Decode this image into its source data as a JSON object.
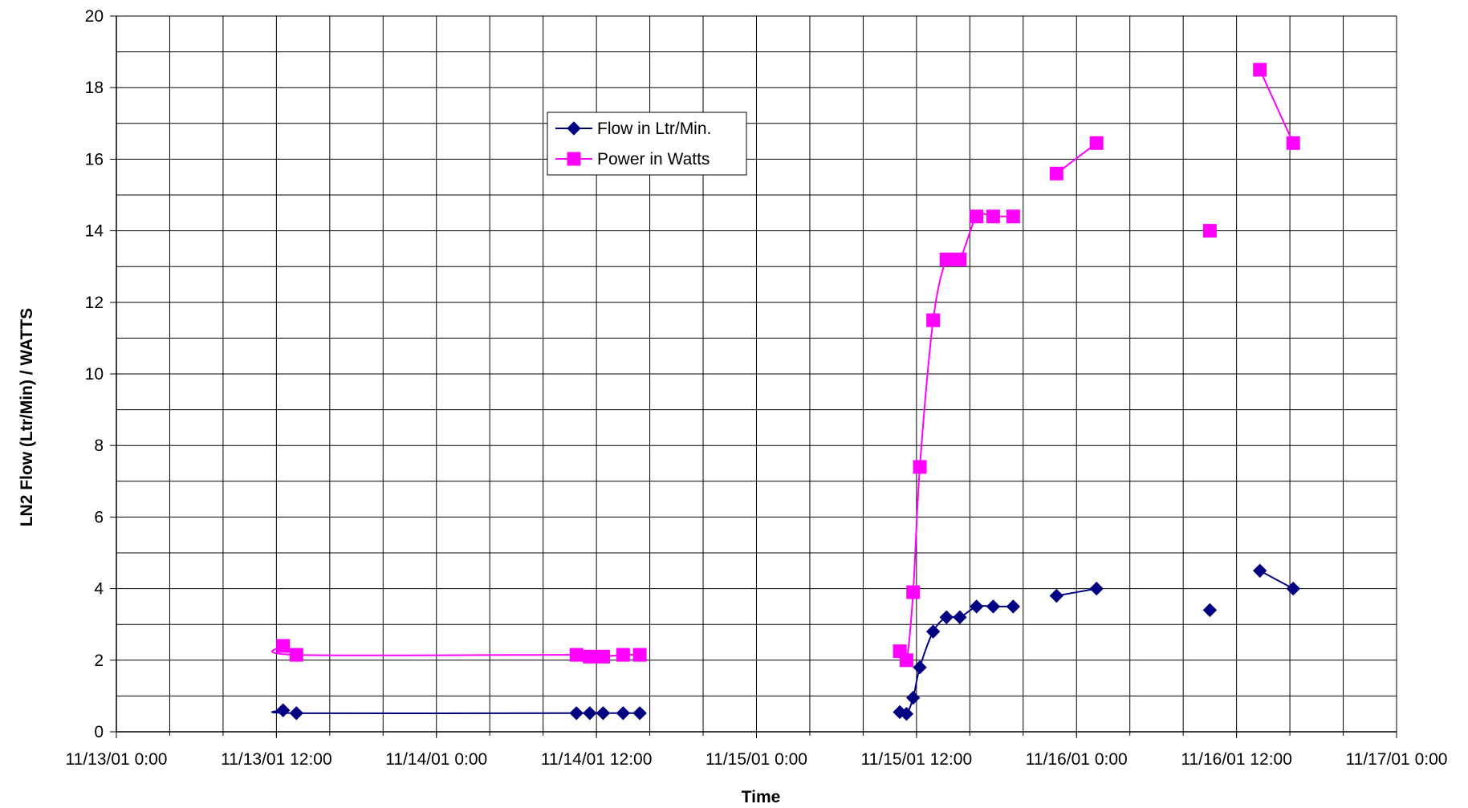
{
  "chart_data": {
    "type": "scatter",
    "title": "",
    "xlabel": "Time",
    "ylabel": "LN2 Flow (Ltr/Min) / WATTS",
    "x_axis_type": "time",
    "xlim": [
      "2001-11-13 00:00",
      "2001-11-17 00:00"
    ],
    "ylim": [
      0,
      20
    ],
    "y_major_step": 2,
    "grid": true,
    "legend_position": "inside-top-center",
    "x_tick_labels": [
      "11/13/01 0:00",
      "11/13/01 12:00",
      "11/14/01 0:00",
      "11/14/01 12:00",
      "11/15/01 0:00",
      "11/15/01 12:00",
      "11/16/01 0:00",
      "11/16/01 12:00",
      "11/17/01 0:00"
    ],
    "y_tick_labels": [
      "0",
      "2",
      "4",
      "6",
      "8",
      "10",
      "12",
      "14",
      "16",
      "18",
      "20"
    ],
    "series": [
      {
        "name": "Flow in Ltr/Min.",
        "color": "#000080",
        "marker": "diamond",
        "segments": [
          [
            [
              "2001-11-13 12:30",
              0.6
            ],
            [
              "2001-11-13 13:30",
              0.52
            ],
            [
              "2001-11-14 10:30",
              0.52
            ],
            [
              "2001-11-14 11:30",
              0.52
            ],
            [
              "2001-11-14 12:30",
              0.52
            ],
            [
              "2001-11-14 14:00",
              0.52
            ],
            [
              "2001-11-14 15:15",
              0.52
            ]
          ],
          [
            [
              "2001-11-15 10:45",
              0.55
            ],
            [
              "2001-11-15 11:15",
              0.5
            ],
            [
              "2001-11-15 11:45",
              0.95
            ],
            [
              "2001-11-15 12:15",
              1.8
            ],
            [
              "2001-11-15 13:15",
              2.8
            ],
            [
              "2001-11-15 14:15",
              3.2
            ],
            [
              "2001-11-15 15:15",
              3.2
            ],
            [
              "2001-11-15 16:30",
              3.5
            ],
            [
              "2001-11-15 17:45",
              3.5
            ],
            [
              "2001-11-15 19:15",
              3.5
            ]
          ],
          [
            [
              "2001-11-15 22:30",
              3.8
            ],
            [
              "2001-11-16 01:30",
              4.0
            ]
          ],
          [
            [
              "2001-11-16 10:00",
              3.4
            ]
          ],
          [
            [
              "2001-11-16 13:45",
              4.5
            ],
            [
              "2001-11-16 16:15",
              4.0
            ]
          ]
        ]
      },
      {
        "name": "Power in Watts",
        "color": "#FF00FF",
        "marker": "square",
        "segments": [
          [
            [
              "2001-11-13 12:30",
              2.4
            ],
            [
              "2001-11-13 13:30",
              2.15
            ],
            [
              "2001-11-14 10:30",
              2.15
            ],
            [
              "2001-11-14 11:30",
              2.1
            ],
            [
              "2001-11-14 12:30",
              2.1
            ],
            [
              "2001-11-14 14:00",
              2.15
            ],
            [
              "2001-11-14 15:15",
              2.15
            ]
          ],
          [
            [
              "2001-11-15 10:45",
              2.25
            ],
            [
              "2001-11-15 11:15",
              2.0
            ],
            [
              "2001-11-15 11:45",
              3.9
            ],
            [
              "2001-11-15 12:15",
              7.4
            ],
            [
              "2001-11-15 13:15",
              11.5
            ],
            [
              "2001-11-15 14:15",
              13.2
            ],
            [
              "2001-11-15 15:15",
              13.2
            ],
            [
              "2001-11-15 16:30",
              14.4
            ],
            [
              "2001-11-15 17:45",
              14.4
            ],
            [
              "2001-11-15 19:15",
              14.4
            ]
          ],
          [
            [
              "2001-11-15 22:30",
              15.6
            ],
            [
              "2001-11-16 01:30",
              16.45
            ]
          ],
          [
            [
              "2001-11-16 10:00",
              14.0
            ]
          ],
          [
            [
              "2001-11-16 13:45",
              18.5
            ],
            [
              "2001-11-16 16:15",
              16.45
            ]
          ]
        ]
      }
    ]
  }
}
